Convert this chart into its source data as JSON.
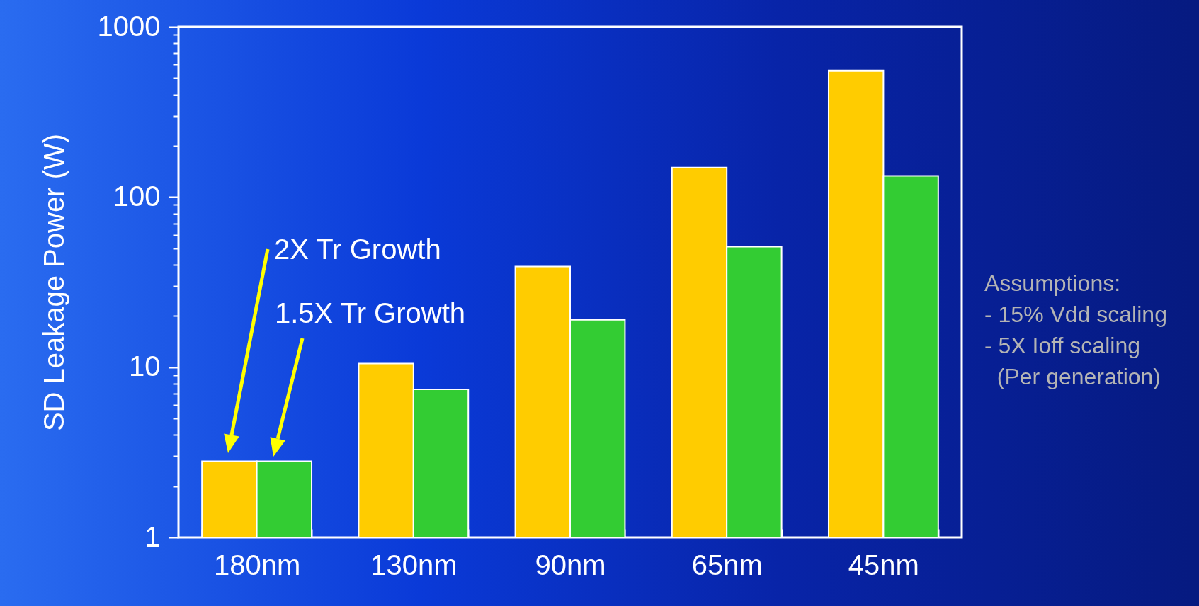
{
  "chart_data": {
    "type": "bar",
    "ylabel": "SD Leakage Power (W)",
    "categories": [
      "180nm",
      "130nm",
      "90nm",
      "65nm",
      "45nm"
    ],
    "series": [
      {
        "color": "#ffcc00",
        "values": [
          2.8,
          10.5,
          39,
          149,
          554
        ]
      },
      {
        "color": "#33cc33",
        "values": [
          2.8,
          7.4,
          19,
          51,
          133
        ]
      }
    ],
    "log": true,
    "ylim": [
      1,
      1000
    ],
    "yticks": [
      1,
      {
        "value": 2,
        "label": null
      },
      {
        "value": 3,
        "label": null
      },
      {
        "value": 4,
        "label": null
      },
      {
        "value": 5,
        "label": null
      },
      {
        "value": 6,
        "label": null
      },
      {
        "value": 7,
        "label": null
      },
      {
        "value": 8,
        "label": null
      },
      {
        "value": 9,
        "label": null
      },
      10,
      {
        "value": 20,
        "label": null
      },
      {
        "value": 30,
        "label": null
      },
      {
        "value": 40,
        "label": null
      },
      {
        "value": 50,
        "label": null
      },
      {
        "value": 60,
        "label": null
      },
      {
        "value": 70,
        "label": null
      },
      {
        "value": 80,
        "label": null
      },
      {
        "value": 90,
        "label": null
      },
      100,
      {
        "value": 200,
        "label": null
      },
      {
        "value": 300,
        "label": null
      },
      {
        "value": 400,
        "label": null
      },
      {
        "value": 500,
        "label": null
      },
      {
        "value": 600,
        "label": null
      },
      {
        "value": 700,
        "label": null
      },
      {
        "value": 800,
        "label": null
      },
      {
        "value": 900,
        "label": null
      },
      1000
    ],
    "grid": false,
    "legend": false,
    "annotations": [
      "2X Tr Growth",
      "1.5X Tr Growth",
      "Assumptions:\n- 15% Vdd scaling\n- 5X Ioff scaling\n  (Per generation)"
    ]
  }
}
